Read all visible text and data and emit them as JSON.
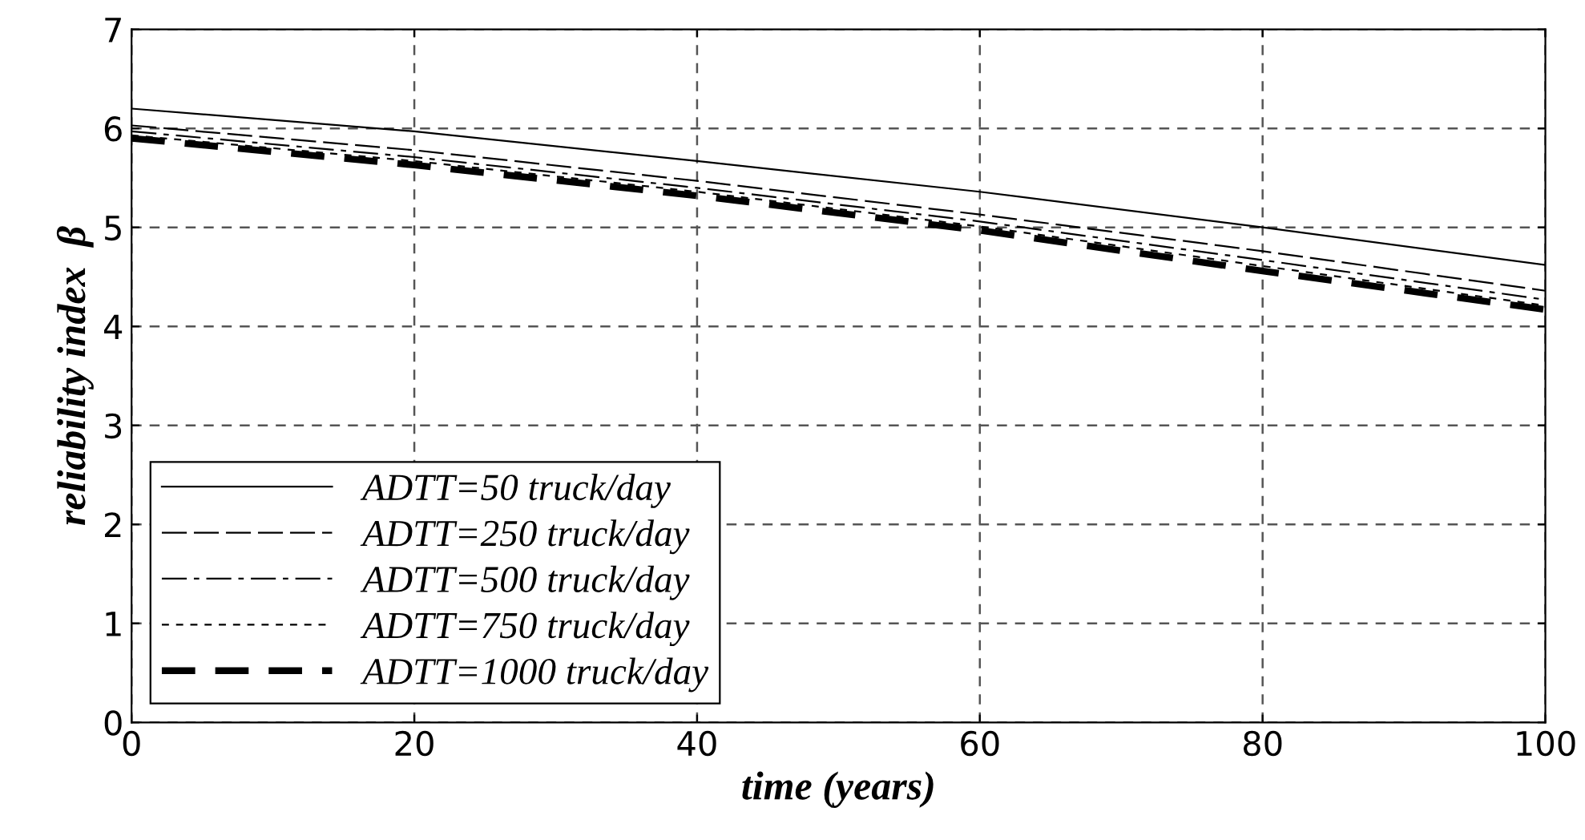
{
  "chart_data": {
    "type": "line",
    "xlabel": "time (years)",
    "ylabel": "reliability index  β",
    "x": [
      0,
      20,
      40,
      60,
      80,
      100
    ],
    "series": [
      {
        "name": "ADTT=50 truck/day",
        "color": "#000000",
        "line_style": "solid",
        "values": [
          6.2,
          5.97,
          5.67,
          5.36,
          5.0,
          4.62
        ]
      },
      {
        "name": "ADTT=250 truck/day",
        "color": "#000000",
        "line_style": "longdash",
        "values": [
          6.03,
          5.78,
          5.47,
          5.13,
          4.76,
          4.36
        ]
      },
      {
        "name": "ADTT=500 truck/day",
        "color": "#000000",
        "line_style": "dashdot",
        "values": [
          5.97,
          5.71,
          5.4,
          5.06,
          4.67,
          4.27
        ]
      },
      {
        "name": "ADTT=750 truck/day",
        "color": "#000000",
        "line_style": "shortdash",
        "values": [
          5.93,
          5.67,
          5.36,
          5.01,
          4.61,
          4.21
        ]
      },
      {
        "name": "ADTT=1000 truck/day",
        "color": "#000000",
        "line_style": "dashed",
        "values": [
          5.9,
          5.63,
          5.32,
          4.97,
          4.56,
          4.17
        ]
      }
    ],
    "xlim": [
      0,
      100
    ],
    "xticks": [
      0,
      20,
      40,
      60,
      80,
      100
    ],
    "ylim": [
      0,
      7
    ],
    "yticks": [
      0,
      1,
      2,
      3,
      4,
      5,
      6,
      7
    ],
    "grid": true,
    "legend": "bottom left",
    "marker": "none"
  }
}
